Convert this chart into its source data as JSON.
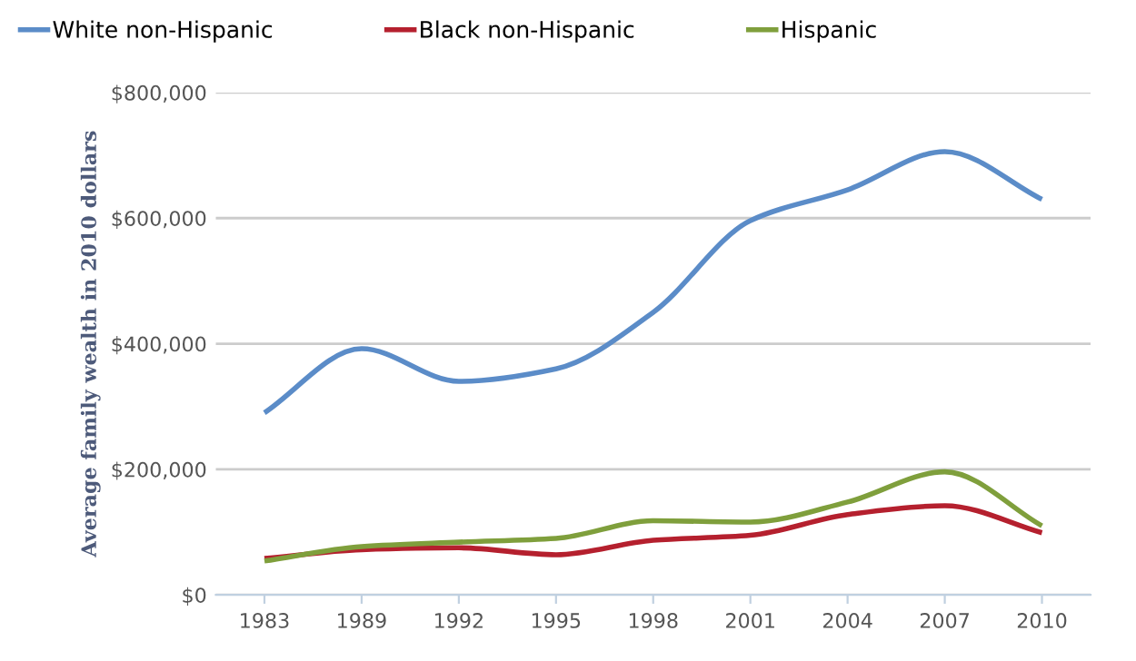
{
  "chart_data": {
    "type": "line",
    "ylabel": "Average family wealth in 2010 dollars",
    "categories": [
      "1983",
      "1989",
      "1992",
      "1995",
      "1998",
      "2001",
      "2004",
      "2007",
      "2010"
    ],
    "series": [
      {
        "name": "White non-Hispanic",
        "color": "#5b8cc8",
        "values": [
          290000,
          392000,
          340000,
          360000,
          450000,
          596000,
          645000,
          706000,
          630000
        ]
      },
      {
        "name": "Black non-Hispanic",
        "color": "#b5202e",
        "values": [
          58000,
          72000,
          75000,
          64000,
          87000,
          95000,
          128000,
          142000,
          99000
        ]
      },
      {
        "name": "Hispanic",
        "color": "#7f9f3c",
        "values": [
          54000,
          77000,
          84000,
          90000,
          118000,
          116000,
          148000,
          196000,
          110000
        ]
      }
    ],
    "ylim": [
      0,
      800000
    ],
    "yticks": [
      {
        "value": 0,
        "label": "$0"
      },
      {
        "value": 200000,
        "label": "$200,000"
      },
      {
        "value": 400000,
        "label": "$400,000"
      },
      {
        "value": 600000,
        "label": "$600,000"
      },
      {
        "value": 800000,
        "label": "$800,000"
      }
    ],
    "grid": "y",
    "legend": "top left",
    "marker": "none",
    "line_style": "solid"
  }
}
